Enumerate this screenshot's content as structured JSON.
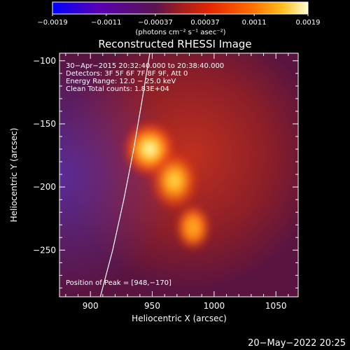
{
  "chart_data": {
    "type": "heatmap",
    "title": "Reconstructed RHESSI Image",
    "xlabel": "Heliocentric X (arcsec)",
    "ylabel": "Heliocentric Y (arcsec)",
    "xlim": [
      875,
      1068
    ],
    "ylim": [
      -287,
      -94
    ],
    "x_ticks": [
      900,
      950,
      1000,
      1050
    ],
    "x_tick_labels": [
      "900",
      "950",
      "1000",
      "1050"
    ],
    "y_ticks": [
      -100,
      -150,
      -200,
      -250
    ],
    "y_tick_labels": [
      "−100",
      "−150",
      "−200",
      "−250"
    ],
    "colorbar": {
      "range": [
        -0.0019,
        0.0019
      ],
      "ticks": [
        -0.0019,
        -0.0011,
        -0.00037,
        0.00037,
        0.0011,
        0.0019
      ],
      "tick_labels": [
        "−0.0019",
        "−0.0011",
        "−0.00037",
        "0.00037",
        "0.0011",
        "0.0019"
      ],
      "units_label": "(photons cm⁻² s⁻¹ asec⁻²)"
    },
    "annotations": [
      "30−Apr−2015 20:32:40.000 to 20:38:40.000",
      "Detectors: 3F 5F 6F 7F 8F 9F, Att 0",
      "Energy Range: 12.0 − 25.0 keV",
      "Clean    Total counts: 1.83E+04"
    ],
    "peak_label": "Position of Peak = [948,−170]",
    "peak_position": [
      948,
      -170
    ],
    "sources": [
      {
        "x": 948,
        "y": -170,
        "peak": 0.0019
      },
      {
        "x": 968,
        "y": -195,
        "peak": 0.0015
      },
      {
        "x": 983,
        "y": -232,
        "peak": 0.0012
      }
    ],
    "limb_curve": [
      [
        908,
        -287
      ],
      [
        918,
        -250
      ],
      [
        927,
        -210
      ],
      [
        935,
        -170
      ],
      [
        942,
        -130
      ],
      [
        948,
        -94
      ]
    ],
    "grid": false,
    "legend": "none"
  },
  "footer_date": "20−May−2022 20:25"
}
